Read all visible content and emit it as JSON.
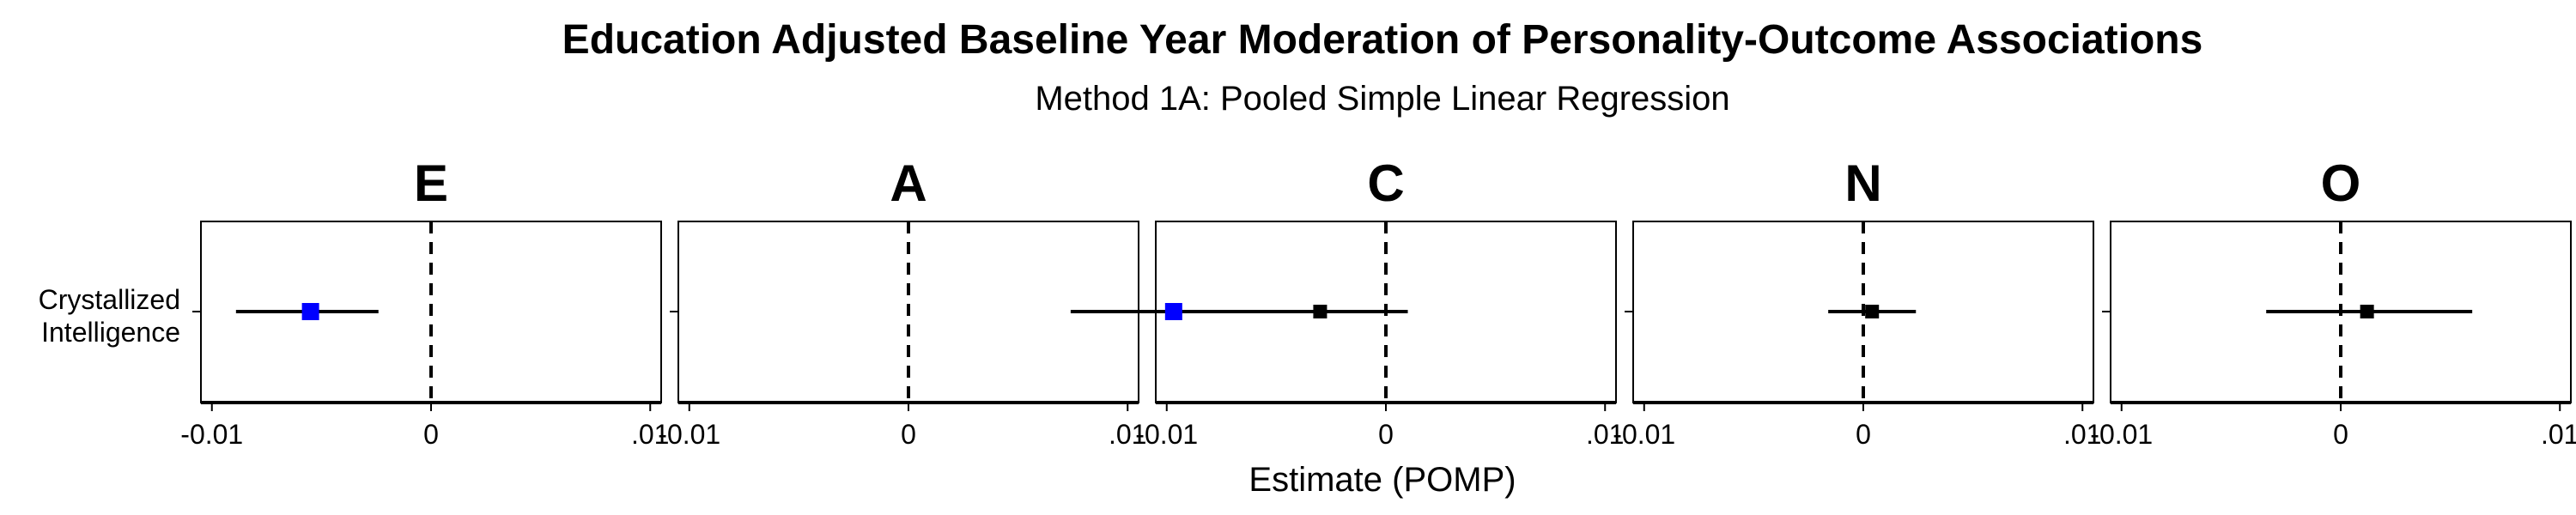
{
  "chart_data": {
    "type": "forest",
    "title": "Education Adjusted Baseline Year Moderation of Personality-Outcome Associations",
    "subtitle": "Method 1A: Pooled Simple Linear Regression",
    "xlabel": "Estimate (POMP)",
    "xlim": [
      -0.0105,
      0.0105
    ],
    "x_ticks": [
      -0.01,
      0,
      0.01
    ],
    "x_tick_labels": [
      "-0.01",
      "0",
      ".01"
    ],
    "reference_line": 0,
    "row_labels": [
      "Crystallized",
      "Intelligence"
    ],
    "colors": {
      "significant": "#0000ff",
      "nonsignificant": "#000000"
    },
    "facets": [
      {
        "label": "E",
        "estimate": -0.0055,
        "ci": [
          -0.0089,
          -0.0024
        ],
        "significant": true
      },
      {
        "label": "A",
        "estimate": 0.0121,
        "ci": [
          0.0074,
          0.0168
        ],
        "significant": true
      },
      {
        "label": "C",
        "estimate": -0.003,
        "ci": [
          -0.0068,
          0.001
        ],
        "significant": false
      },
      {
        "label": "N",
        "estimate": 0.0004,
        "ci": [
          -0.0016,
          0.0024
        ],
        "significant": false
      },
      {
        "label": "O",
        "estimate": 0.0012,
        "ci": [
          -0.0034,
          0.006
        ],
        "significant": false
      }
    ]
  }
}
